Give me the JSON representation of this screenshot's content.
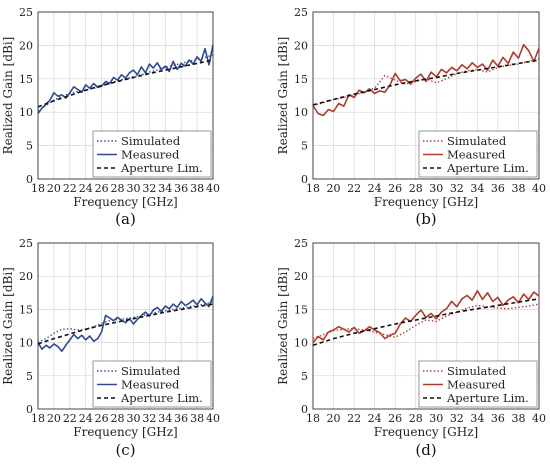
{
  "chart_data": [
    {
      "type": "line",
      "panel_label": "(a)",
      "xlabel": "Frequency [GHz]",
      "ylabel": "Realized Gain [dBi]",
      "xlim": [
        18,
        40
      ],
      "ylim": [
        0,
        25
      ],
      "xticks": [
        "18",
        "20",
        "22",
        "24",
        "26",
        "28",
        "30",
        "32",
        "34",
        "36",
        "38",
        "40"
      ],
      "yticks": [
        "0",
        "5",
        "10",
        "15",
        "20",
        "25"
      ],
      "grid": true,
      "legend_position": "bottom-right",
      "series": [
        {
          "name": "Simulated",
          "style": "dotted",
          "color": "#2f4a8f",
          "x": [
            18,
            19,
            20,
            21,
            22,
            23,
            24,
            25,
            26,
            27,
            28,
            29,
            30,
            31,
            32,
            33,
            34,
            35,
            36,
            37,
            38,
            39,
            40
          ],
          "y": [
            10.2,
            11.0,
            11.8,
            12.4,
            12.8,
            13.1,
            13.3,
            13.6,
            13.9,
            14.3,
            14.7,
            15.0,
            15.3,
            15.6,
            16.0,
            16.3,
            16.7,
            17.0,
            17.3,
            17.6,
            17.9,
            18.2,
            18.6
          ]
        },
        {
          "name": "Measured",
          "style": "solid",
          "color": "#2f4a8f",
          "x": [
            18,
            18.5,
            19,
            19.5,
            20,
            20.5,
            21,
            21.5,
            22,
            22.5,
            23,
            23.5,
            24,
            24.5,
            25,
            25.5,
            26,
            26.5,
            27,
            27.5,
            28,
            28.5,
            29,
            29.5,
            30,
            30.5,
            31,
            31.5,
            32,
            32.5,
            33,
            33.5,
            34,
            34.5,
            35,
            35.5,
            36,
            36.5,
            37,
            37.5,
            38,
            38.5,
            39,
            39.5,
            40
          ],
          "y": [
            9.8,
            10.6,
            11.2,
            11.8,
            12.9,
            12.4,
            12.6,
            12.1,
            12.9,
            13.8,
            13.4,
            13.0,
            14.1,
            13.6,
            14.3,
            13.7,
            13.9,
            14.6,
            14.3,
            15.2,
            14.8,
            15.6,
            15.1,
            15.9,
            16.3,
            15.6,
            16.8,
            15.9,
            17.2,
            16.6,
            17.4,
            16.4,
            16.9,
            16.1,
            17.6,
            16.4,
            17.3,
            16.9,
            17.8,
            17.2,
            18.3,
            17.6,
            19.5,
            17.1,
            20.1
          ]
        },
        {
          "name": "Aperture Lim.",
          "style": "dashed",
          "color": "#111111",
          "x": [
            18,
            20,
            22,
            24,
            26,
            28,
            30,
            32,
            34,
            36,
            38,
            40
          ],
          "y": [
            10.8,
            11.7,
            12.5,
            13.3,
            14.0,
            14.6,
            15.2,
            15.8,
            16.3,
            16.8,
            17.3,
            17.8
          ]
        }
      ]
    },
    {
      "type": "line",
      "panel_label": "(b)",
      "xlabel": "Frequency [GHz]",
      "ylabel": "Realized Gain [dBi]",
      "xlim": [
        18,
        40
      ],
      "ylim": [
        0,
        25
      ],
      "xticks": [
        "18",
        "20",
        "22",
        "24",
        "26",
        "28",
        "30",
        "32",
        "34",
        "36",
        "38",
        "40"
      ],
      "yticks": [
        "0",
        "5",
        "10",
        "15",
        "20",
        "25"
      ],
      "grid": true,
      "legend_position": "bottom-right",
      "series": [
        {
          "name": "Simulated",
          "style": "dotted",
          "color": "#b03a2e",
          "x": [
            18,
            19,
            20,
            21,
            22,
            23,
            24,
            25,
            26,
            27,
            28,
            29,
            30,
            31,
            32,
            33,
            34,
            35,
            36,
            37,
            38,
            39,
            40
          ],
          "y": [
            11.0,
            11.4,
            11.9,
            12.2,
            12.6,
            13.0,
            13.6,
            15.5,
            14.8,
            14.2,
            14.6,
            15.0,
            14.4,
            15.0,
            15.8,
            16.2,
            16.4,
            16.0,
            16.7,
            17.0,
            17.2,
            17.6,
            18.0
          ]
        },
        {
          "name": "Measured",
          "style": "solid",
          "color": "#b03a2e",
          "x": [
            18,
            18.5,
            19,
            19.5,
            20,
            20.5,
            21,
            21.5,
            22,
            22.5,
            23,
            23.5,
            24,
            24.5,
            25,
            25.5,
            26,
            26.5,
            27,
            27.5,
            28,
            28.5,
            29,
            29.5,
            30,
            30.5,
            31,
            31.5,
            32,
            32.5,
            33,
            33.5,
            34,
            34.5,
            35,
            35.5,
            36,
            36.5,
            37,
            37.5,
            38,
            38.5,
            39,
            39.5,
            40
          ],
          "y": [
            11.0,
            9.8,
            9.5,
            10.4,
            10.1,
            11.3,
            10.9,
            12.6,
            12.2,
            13.3,
            12.9,
            13.5,
            12.8,
            13.2,
            13.0,
            14.1,
            15.8,
            14.7,
            14.9,
            14.2,
            15.1,
            15.7,
            14.6,
            16.0,
            15.3,
            16.4,
            15.9,
            16.7,
            16.2,
            17.1,
            16.5,
            17.4,
            16.7,
            17.2,
            16.3,
            17.8,
            16.9,
            18.2,
            17.3,
            19.0,
            18.1,
            20.1,
            19.2,
            17.6,
            19.6
          ]
        },
        {
          "name": "Aperture Lim.",
          "style": "dashed",
          "color": "#111111",
          "x": [
            18,
            20,
            22,
            24,
            26,
            28,
            30,
            32,
            34,
            36,
            38,
            40
          ],
          "y": [
            11.1,
            11.9,
            12.7,
            13.4,
            14.1,
            14.7,
            15.2,
            15.8,
            16.3,
            16.8,
            17.3,
            17.8
          ]
        }
      ]
    },
    {
      "type": "line",
      "panel_label": "(c)",
      "xlabel": "Frequency [GHz]",
      "ylabel": "Realized Gain [dBi]",
      "xlim": [
        18,
        40
      ],
      "ylim": [
        0,
        25
      ],
      "xticks": [
        "18",
        "20",
        "22",
        "24",
        "26",
        "28",
        "30",
        "32",
        "34",
        "36",
        "38",
        "40"
      ],
      "yticks": [
        "0",
        "5",
        "10",
        "15",
        "20",
        "25"
      ],
      "grid": true,
      "legend_position": "bottom-right",
      "series": [
        {
          "name": "Simulated",
          "style": "dotted",
          "color": "#2f4a8f",
          "x": [
            18,
            19,
            20,
            21,
            22,
            23,
            24,
            25,
            26,
            27,
            28,
            29,
            30,
            31,
            32,
            33,
            34,
            35,
            36,
            37,
            38,
            39,
            40
          ],
          "y": [
            10.0,
            10.6,
            11.4,
            12.0,
            12.1,
            11.9,
            12.0,
            12.4,
            12.9,
            13.3,
            13.5,
            13.6,
            13.8,
            14.0,
            14.3,
            14.6,
            14.8,
            15.0,
            15.2,
            15.4,
            15.6,
            15.8,
            16.2
          ]
        },
        {
          "name": "Measured",
          "style": "solid",
          "color": "#2f4a8f",
          "x": [
            18,
            18.5,
            19,
            19.5,
            20,
            20.5,
            21,
            21.5,
            22,
            22.5,
            23,
            23.5,
            24,
            24.5,
            25,
            25.5,
            26,
            26.5,
            27,
            27.5,
            28,
            28.5,
            29,
            29.5,
            30,
            30.5,
            31,
            31.5,
            32,
            32.5,
            33,
            33.5,
            34,
            34.5,
            35,
            35.5,
            36,
            36.5,
            37,
            37.5,
            38,
            38.5,
            39,
            39.5,
            40
          ],
          "y": [
            10.0,
            9.0,
            9.6,
            9.2,
            9.8,
            9.4,
            8.7,
            9.6,
            10.4,
            11.2,
            10.6,
            11.1,
            10.4,
            11.0,
            10.2,
            10.6,
            11.6,
            14.1,
            13.7,
            13.3,
            13.8,
            13.4,
            13.0,
            13.6,
            12.8,
            13.5,
            14.1,
            14.6,
            14.0,
            14.9,
            15.3,
            14.7,
            15.5,
            15.1,
            15.8,
            15.3,
            16.2,
            15.6,
            15.9,
            16.4,
            15.7,
            16.6,
            16.0,
            15.4,
            17.0
          ]
        },
        {
          "name": "Aperture Lim.",
          "style": "dashed",
          "color": "#111111",
          "x": [
            18,
            20,
            22,
            24,
            26,
            28,
            30,
            32,
            34,
            36,
            38,
            40
          ],
          "y": [
            9.8,
            10.6,
            11.3,
            12.0,
            12.6,
            13.1,
            13.6,
            14.1,
            14.6,
            15.0,
            15.4,
            15.8
          ]
        }
      ]
    },
    {
      "type": "line",
      "panel_label": "(d)",
      "xlabel": "Frequency [GHz]",
      "ylabel": "Realized Gain [dBi]",
      "xlim": [
        18,
        40
      ],
      "ylim": [
        0,
        25
      ],
      "xticks": [
        "18",
        "20",
        "22",
        "24",
        "26",
        "28",
        "30",
        "32",
        "34",
        "36",
        "38",
        "40"
      ],
      "yticks": [
        "0",
        "5",
        "10",
        "15",
        "20",
        "25"
      ],
      "grid": true,
      "legend_position": "bottom-right",
      "series": [
        {
          "name": "Simulated",
          "style": "dotted",
          "color": "#b03a2e",
          "x": [
            18,
            19,
            20,
            21,
            22,
            23,
            24,
            25,
            26,
            27,
            28,
            29,
            30,
            31,
            32,
            33,
            34,
            35,
            36,
            37,
            38,
            39,
            40
          ],
          "y": [
            10.6,
            11.2,
            11.8,
            12.0,
            12.1,
            11.9,
            11.6,
            11.2,
            10.8,
            11.6,
            12.6,
            13.4,
            13.2,
            14.0,
            14.6,
            15.2,
            15.6,
            15.4,
            15.2,
            15.1,
            15.3,
            15.5,
            15.8
          ]
        },
        {
          "name": "Measured",
          "style": "solid",
          "color": "#b03a2e",
          "x": [
            18,
            18.5,
            19,
            19.5,
            20,
            20.5,
            21,
            21.5,
            22,
            22.5,
            23,
            23.5,
            24,
            24.5,
            25,
            25.5,
            26,
            26.5,
            27,
            27.5,
            28,
            28.5,
            29,
            29.5,
            30,
            30.5,
            31,
            31.5,
            32,
            32.5,
            33,
            33.5,
            34,
            34.5,
            35,
            35.5,
            36,
            36.5,
            37,
            37.5,
            38,
            38.5,
            39,
            39.5,
            40
          ],
          "y": [
            10.0,
            10.9,
            10.4,
            11.6,
            11.9,
            12.4,
            12.0,
            11.6,
            12.3,
            11.4,
            11.8,
            12.4,
            11.9,
            11.5,
            10.6,
            11.1,
            11.4,
            12.8,
            13.7,
            13.2,
            14.1,
            14.9,
            13.8,
            14.4,
            13.6,
            14.6,
            15.1,
            16.2,
            15.4,
            16.6,
            17.1,
            16.4,
            17.8,
            16.5,
            17.5,
            16.2,
            16.8,
            15.6,
            16.4,
            16.9,
            16.0,
            17.3,
            16.5,
            17.6,
            17.0
          ]
        },
        {
          "name": "Aperture Lim.",
          "style": "dashed",
          "color": "#111111",
          "x": [
            18,
            20,
            22,
            24,
            26,
            28,
            30,
            32,
            34,
            36,
            38,
            40
          ],
          "y": [
            9.6,
            10.6,
            11.4,
            12.1,
            12.8,
            13.4,
            14.0,
            14.6,
            15.1,
            15.6,
            16.1,
            16.6
          ]
        }
      ]
    }
  ]
}
